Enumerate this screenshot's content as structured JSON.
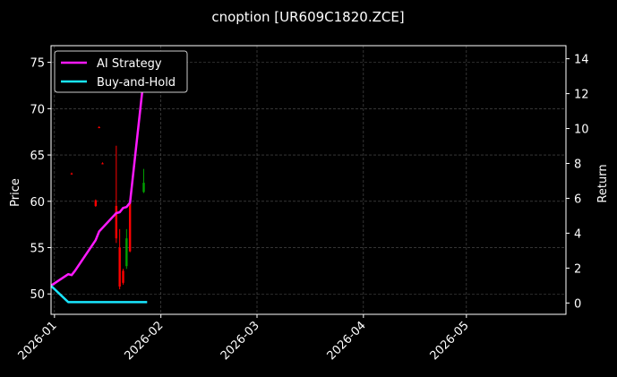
{
  "chart_data": {
    "type": "candlestick+line",
    "title": "cnoption [UR609C1820.ZCE]",
    "ylabel": "Price",
    "y2label": "Return",
    "ylim": [
      47.8,
      76.8
    ],
    "y2lim": [
      -0.65,
      14.75
    ],
    "xlim": [
      "2025-12-31",
      "2026-05-30"
    ],
    "grid": true,
    "legend_position": "top-left",
    "x_ticks": [
      "2026-01",
      "2026-02",
      "2026-03",
      "2026-04",
      "2026-05"
    ],
    "y_ticks": [
      50,
      55,
      60,
      65,
      70,
      75
    ],
    "y2_ticks": [
      0,
      2,
      4,
      6,
      8,
      10,
      12,
      14
    ],
    "candles": [
      {
        "date": "2026-01-06",
        "open": 63.0,
        "high": 63.1,
        "low": 62.9,
        "close": 62.9,
        "color": "#ff0000"
      },
      {
        "date": "2026-01-13",
        "open": 60.1,
        "high": 60.2,
        "low": 59.4,
        "close": 59.5,
        "color": "#ff0000"
      },
      {
        "date": "2026-01-14",
        "open": 68.0,
        "high": 68.1,
        "low": 67.9,
        "close": 67.9,
        "color": "#ff0000"
      },
      {
        "date": "2026-01-15",
        "open": 64.1,
        "high": 64.2,
        "low": 64.0,
        "close": 64.0,
        "color": "#ff0000"
      },
      {
        "date": "2026-01-19",
        "open": 59.5,
        "high": 66.0,
        "low": 55.5,
        "close": 56.0,
        "color": "#ff0000"
      },
      {
        "date": "2026-01-20",
        "open": 55.0,
        "high": 57.0,
        "low": 50.5,
        "close": 50.8,
        "color": "#ff0000"
      },
      {
        "date": "2026-01-21",
        "open": 52.5,
        "high": 52.7,
        "low": 51.0,
        "close": 51.2,
        "color": "#ff0000"
      },
      {
        "date": "2026-01-22",
        "open": 53.0,
        "high": 57.0,
        "low": 52.7,
        "close": 56.0,
        "color": "#00a000"
      },
      {
        "date": "2026-01-23",
        "open": 60.0,
        "high": 60.1,
        "low": 54.5,
        "close": 54.6,
        "color": "#ff0000"
      },
      {
        "date": "2026-01-27",
        "open": 61.0,
        "high": 63.5,
        "low": 60.9,
        "close": 62.0,
        "color": "#00a000"
      }
    ],
    "series": [
      {
        "name": "AI Strategy",
        "color": "#ff19ff",
        "points": [
          {
            "date": "2025-12-31",
            "value": 1.0
          },
          {
            "date": "2026-01-05",
            "value": 1.65
          },
          {
            "date": "2026-01-06",
            "value": 1.6
          },
          {
            "date": "2026-01-07",
            "value": 1.85
          },
          {
            "date": "2026-01-13",
            "value": 3.6
          },
          {
            "date": "2026-01-14",
            "value": 4.1
          },
          {
            "date": "2026-01-19",
            "value": 5.15
          },
          {
            "date": "2026-01-20",
            "value": 5.2
          },
          {
            "date": "2026-01-21",
            "value": 5.45
          },
          {
            "date": "2026-01-22",
            "value": 5.5
          },
          {
            "date": "2026-01-23",
            "value": 5.75
          },
          {
            "date": "2026-01-27",
            "value": 12.9
          },
          {
            "date": "2026-01-28",
            "value": 14.4
          }
        ]
      },
      {
        "name": "Buy-and-Hold",
        "color": "#19e6ff",
        "points": [
          {
            "date": "2025-12-31",
            "value": 0.98
          },
          {
            "date": "2026-01-05",
            "value": 0.05
          },
          {
            "date": "2026-01-28",
            "value": 0.05
          }
        ]
      }
    ]
  }
}
